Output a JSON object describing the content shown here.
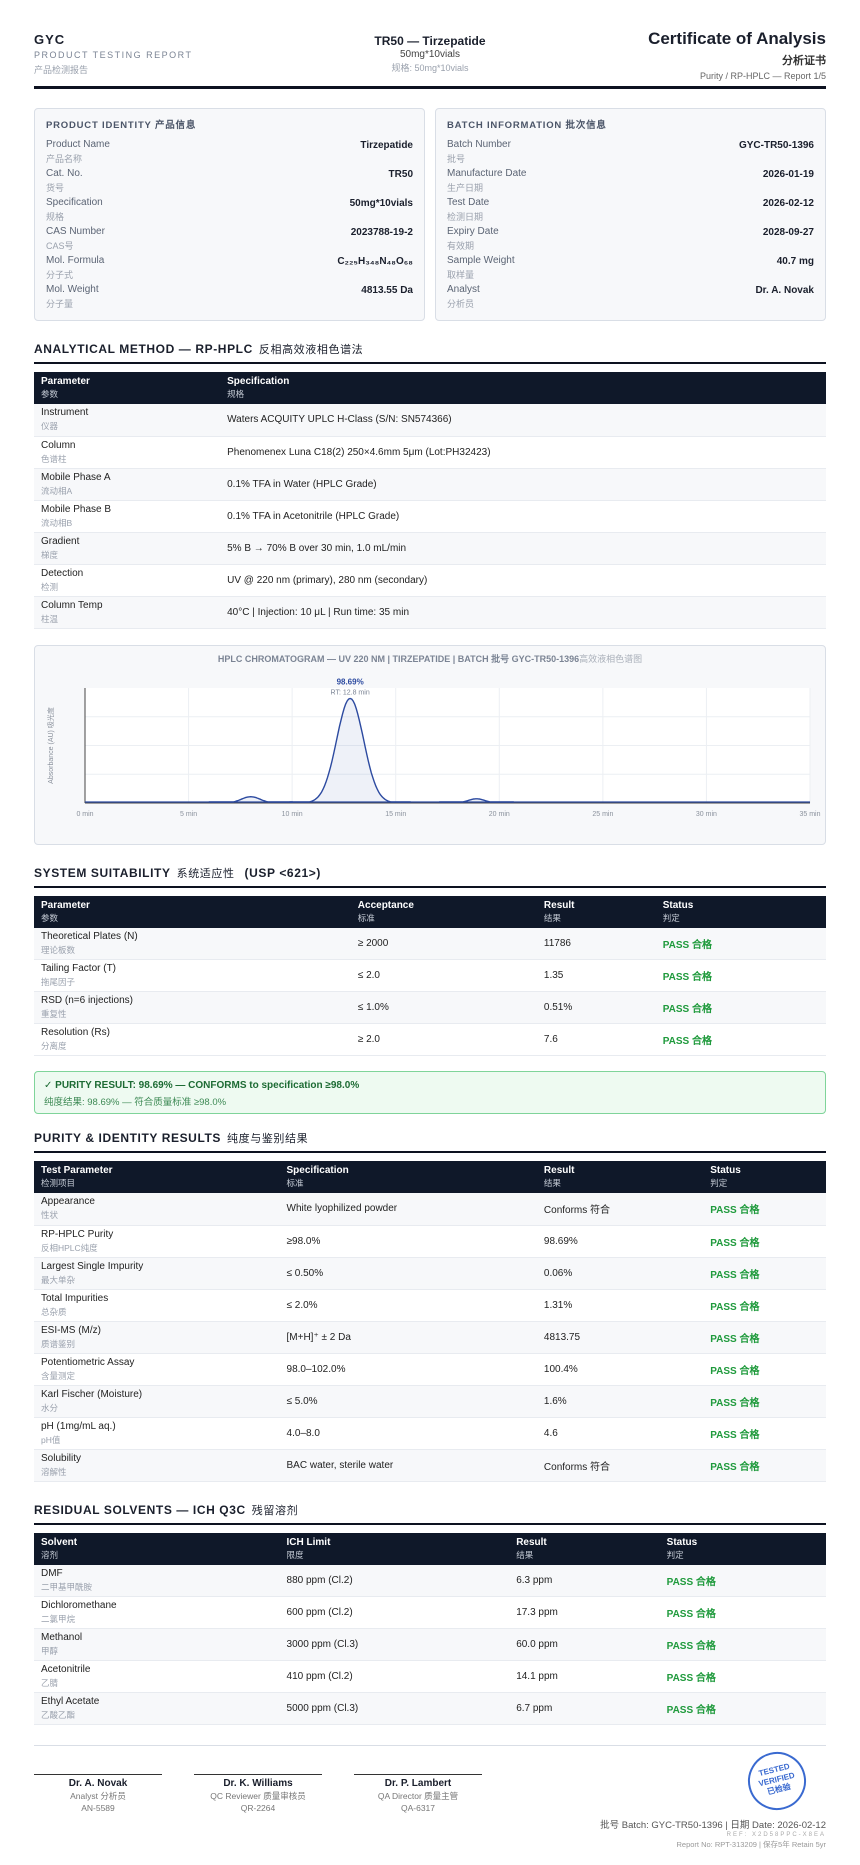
{
  "header": {
    "brand": "GYC",
    "subtitle": "PRODUCT TESTING REPORT",
    "subtitle_cn": "产品检测报告",
    "product": "TR50 — Tirzepatide",
    "spec": "50mg*10vials",
    "spec_cn": "规格: 50mg*10vials",
    "doc_title": "Certificate of Analysis",
    "doc_title_cn": "分析证书",
    "doc_ref": "Purity / RP-HPLC — Report 1/5"
  },
  "product_identity": {
    "title": "PRODUCT IDENTITY 产品信息",
    "rows": [
      {
        "label": "Product Name",
        "label_cn": "产品名称",
        "value": "Tirzepatide"
      },
      {
        "label": "Cat. No.",
        "label_cn": "货号",
        "value": "TR50"
      },
      {
        "label": "Specification",
        "label_cn": "规格",
        "value": "50mg*10vials"
      },
      {
        "label": "CAS Number",
        "label_cn": "CAS号",
        "value": "2023788-19-2"
      },
      {
        "label": "Mol. Formula",
        "label_cn": "分子式",
        "value": "C₂₂₅H₃₄₈N₄₈O₆₈"
      },
      {
        "label": "Mol. Weight",
        "label_cn": "分子量",
        "value": "4813.55 Da"
      }
    ]
  },
  "batch_information": {
    "title": "BATCH INFORMATION 批次信息",
    "rows": [
      {
        "label": "Batch Number",
        "label_cn": "批号",
        "value": "GYC-TR50-1396"
      },
      {
        "label": "Manufacture Date",
        "label_cn": "生产日期",
        "value": "2026-01-19"
      },
      {
        "label": "Test Date",
        "label_cn": "检测日期",
        "value": "2026-02-12"
      },
      {
        "label": "Expiry Date",
        "label_cn": "有效期",
        "value": "2028-09-27"
      },
      {
        "label": "Sample Weight",
        "label_cn": "取样量",
        "value": "40.7 mg"
      },
      {
        "label": "Analyst",
        "label_cn": "分析员",
        "value": "Dr. A. Novak"
      }
    ]
  },
  "analytical_method": {
    "title": "ANALYTICAL METHOD — RP-HPLC",
    "title_cn": "反相高效液相色谱法",
    "columns": [
      {
        "label": "Parameter",
        "label_cn": "参数"
      },
      {
        "label": "Specification",
        "label_cn": "规格"
      }
    ],
    "rows": [
      [
        {
          "text": "Instrument",
          "cn": "仪器"
        },
        {
          "text": "Waters ACQUITY UPLC H-Class (S/N: SN574366)"
        }
      ],
      [
        {
          "text": "Column",
          "cn": "色谱柱"
        },
        {
          "text": "Phenomenex Luna C18(2) 250×4.6mm 5μm (Lot:PH32423)"
        }
      ],
      [
        {
          "text": "Mobile Phase A",
          "cn": "流动相A"
        },
        {
          "text": "0.1% TFA in Water (HPLC Grade)"
        }
      ],
      [
        {
          "text": "Mobile Phase B",
          "cn": "流动相B"
        },
        {
          "text": "0.1% TFA in Acetonitrile (HPLC Grade)"
        }
      ],
      [
        {
          "text": "Gradient",
          "cn": "梯度"
        },
        {
          "text": "5% B → 70% B over 30 min, 1.0 mL/min"
        }
      ],
      [
        {
          "text": "Detection",
          "cn": "检测"
        },
        {
          "text": "UV @ 220 nm (primary), 280 nm (secondary)"
        }
      ],
      [
        {
          "text": "Column Temp",
          "cn": "柱温"
        },
        {
          "text": "40°C | Injection: 10 μL | Run time: 35 min"
        }
      ]
    ]
  },
  "chromatogram": {
    "title": "HPLC CHROMATOGRAM — UV 220 NM | TIRZEPATIDE | BATCH 批号 GYC-TR50-1396",
    "title_cn": "高效液相色谱图",
    "y_label": "Absorbance (AU) 吸光度",
    "peak_label": "98.69%",
    "peak_rt_label": "RT: 12.8 min",
    "xlim": [
      0,
      35
    ],
    "xticks": [
      {
        "value": 0,
        "label": "0 min"
      },
      {
        "value": 5,
        "label": "5 min"
      },
      {
        "value": 10,
        "label": "10 min"
      },
      {
        "value": 15,
        "label": "15 min"
      },
      {
        "value": 20,
        "label": "20 min"
      },
      {
        "value": 25,
        "label": "25 min"
      },
      {
        "value": 30,
        "label": "30 min"
      },
      {
        "value": 35,
        "label": "35 min"
      }
    ],
    "ylim": [
      0,
      110
    ],
    "color": "#2c4aa0",
    "peaks": [
      {
        "rt": 8.0,
        "height": 6,
        "sigma": 0.45
      },
      {
        "rt": 12.8,
        "height": 100,
        "sigma": 0.65
      },
      {
        "rt": 18.9,
        "height": 4,
        "sigma": 0.4
      }
    ]
  },
  "system_suitability": {
    "title": "SYSTEM SUITABILITY",
    "title_cn": "系统适应性",
    "title_ref": "(USP <621>)",
    "columns": [
      {
        "label": "Parameter",
        "label_cn": "参数"
      },
      {
        "label": "Acceptance",
        "label_cn": "标准"
      },
      {
        "label": "Result",
        "label_cn": "结果"
      },
      {
        "label": "Status",
        "label_cn": "判定"
      }
    ],
    "rows": [
      [
        {
          "text": "Theoretical Plates (N)",
          "cn": "理论板数"
        },
        {
          "text": "≥ 2000"
        },
        {
          "text": "11786"
        },
        {
          "text": "PASS 合格"
        }
      ],
      [
        {
          "text": "Tailing Factor (T)",
          "cn": "拖尾因子"
        },
        {
          "text": "≤ 2.0"
        },
        {
          "text": "1.35"
        },
        {
          "text": "PASS 合格"
        }
      ],
      [
        {
          "text": "RSD (n=6 injections)",
          "cn": "重复性"
        },
        {
          "text": "≤ 1.0%"
        },
        {
          "text": "0.51%"
        },
        {
          "text": "PASS 合格"
        }
      ],
      [
        {
          "text": "Resolution (Rs)",
          "cn": "分离度"
        },
        {
          "text": "≥ 2.0"
        },
        {
          "text": "7.6"
        },
        {
          "text": "PASS 合格"
        }
      ]
    ]
  },
  "purity_result": {
    "line1": "✓ PURITY RESULT: 98.69% — CONFORMS to specification ≥98.0%",
    "line2": "纯度结果: 98.69% — 符合质量标准 ≥98.0%"
  },
  "purity_identity": {
    "title": "PURITY & IDENTITY RESULTS",
    "title_cn": "纯度与鉴别结果",
    "columns": [
      {
        "label": "Test Parameter",
        "label_cn": "检测项目"
      },
      {
        "label": "Specification",
        "label_cn": "标准"
      },
      {
        "label": "Result",
        "label_cn": "结果"
      },
      {
        "label": "Status",
        "label_cn": "判定"
      }
    ],
    "rows": [
      [
        {
          "text": "Appearance",
          "cn": "性状"
        },
        {
          "text": "White lyophilized powder"
        },
        {
          "text": "Conforms 符合"
        },
        {
          "text": "PASS 合格"
        }
      ],
      [
        {
          "text": "RP-HPLC Purity",
          "cn": "反相HPLC纯度"
        },
        {
          "text": "≥98.0%"
        },
        {
          "text": "98.69%"
        },
        {
          "text": "PASS 合格"
        }
      ],
      [
        {
          "text": "Largest Single Impurity",
          "cn": "最大单杂"
        },
        {
          "text": "≤ 0.50%"
        },
        {
          "text": "0.06%"
        },
        {
          "text": "PASS 合格"
        }
      ],
      [
        {
          "text": "Total Impurities",
          "cn": "总杂质"
        },
        {
          "text": "≤ 2.0%"
        },
        {
          "text": "1.31%"
        },
        {
          "text": "PASS 合格"
        }
      ],
      [
        {
          "text": "ESI-MS (M/z)",
          "cn": "质谱鉴别"
        },
        {
          "text": "[M+H]⁺ ± 2 Da"
        },
        {
          "text": "4813.75"
        },
        {
          "text": "PASS 合格"
        }
      ],
      [
        {
          "text": "Potentiometric Assay",
          "cn": "含量测定"
        },
        {
          "text": "98.0–102.0%"
        },
        {
          "text": "100.4%"
        },
        {
          "text": "PASS 合格"
        }
      ],
      [
        {
          "text": "Karl Fischer (Moisture)",
          "cn": "水分"
        },
        {
          "text": "≤ 5.0%"
        },
        {
          "text": "1.6%"
        },
        {
          "text": "PASS 合格"
        }
      ],
      [
        {
          "text": "pH (1mg/mL aq.)",
          "cn": "pH值"
        },
        {
          "text": "4.0–8.0"
        },
        {
          "text": "4.6"
        },
        {
          "text": "PASS 合格"
        }
      ],
      [
        {
          "text": "Solubility",
          "cn": "溶解性"
        },
        {
          "text": "BAC water, sterile water"
        },
        {
          "text": "Conforms 符合"
        },
        {
          "text": "PASS 合格"
        }
      ]
    ]
  },
  "residual_solvents": {
    "title": "RESIDUAL SOLVENTS — ICH Q3C",
    "title_cn": "残留溶剂",
    "columns": [
      {
        "label": "Solvent",
        "label_cn": "溶剂"
      },
      {
        "label": "ICH Limit",
        "label_cn": "限度"
      },
      {
        "label": "Result",
        "label_cn": "结果"
      },
      {
        "label": "Status",
        "label_cn": "判定"
      }
    ],
    "rows": [
      [
        {
          "text": "DMF",
          "cn": "二甲基甲酰胺"
        },
        {
          "text": "880 ppm (Cl.2)"
        },
        {
          "text": "6.3 ppm"
        },
        {
          "text": "PASS 合格"
        }
      ],
      [
        {
          "text": "Dichloromethane",
          "cn": "二氯甲烷"
        },
        {
          "text": "600 ppm (Cl.2)"
        },
        {
          "text": "17.3 ppm"
        },
        {
          "text": "PASS 合格"
        }
      ],
      [
        {
          "text": "Methanol",
          "cn": "甲醇"
        },
        {
          "text": "3000 ppm (Cl.3)"
        },
        {
          "text": "60.0 ppm"
        },
        {
          "text": "PASS 合格"
        }
      ],
      [
        {
          "text": "Acetonitrile",
          "cn": "乙腈"
        },
        {
          "text": "410 ppm (Cl.2)"
        },
        {
          "text": "14.1 ppm"
        },
        {
          "text": "PASS 合格"
        }
      ],
      [
        {
          "text": "Ethyl Acetate",
          "cn": "乙酸乙酯"
        },
        {
          "text": "5000 ppm (Cl.3)"
        },
        {
          "text": "6.7 ppm"
        },
        {
          "text": "PASS 合格"
        }
      ]
    ]
  },
  "signatures": [
    {
      "name": "Dr. A. Novak",
      "role": "Analyst 分析员",
      "id": "AN-5589"
    },
    {
      "name": "Dr. K. Williams",
      "role": "QC Reviewer 质量审核员",
      "id": "QR-2264"
    },
    {
      "name": "Dr. P. Lambert",
      "role": "QA Director 质量主管",
      "id": "QA-6317"
    }
  ],
  "footer": {
    "batch_date": "批号 Batch: GYC-TR50-1396 | 日期 Date: 2026-02-12",
    "ref": "REF: X2D58PPC-X8EA",
    "report": "Report No: RPT-313209 | 保存5年 Retain 5yr"
  },
  "stamp": {
    "line1": "TESTED",
    "line2": "VERIFIED",
    "line3": "已检验"
  }
}
